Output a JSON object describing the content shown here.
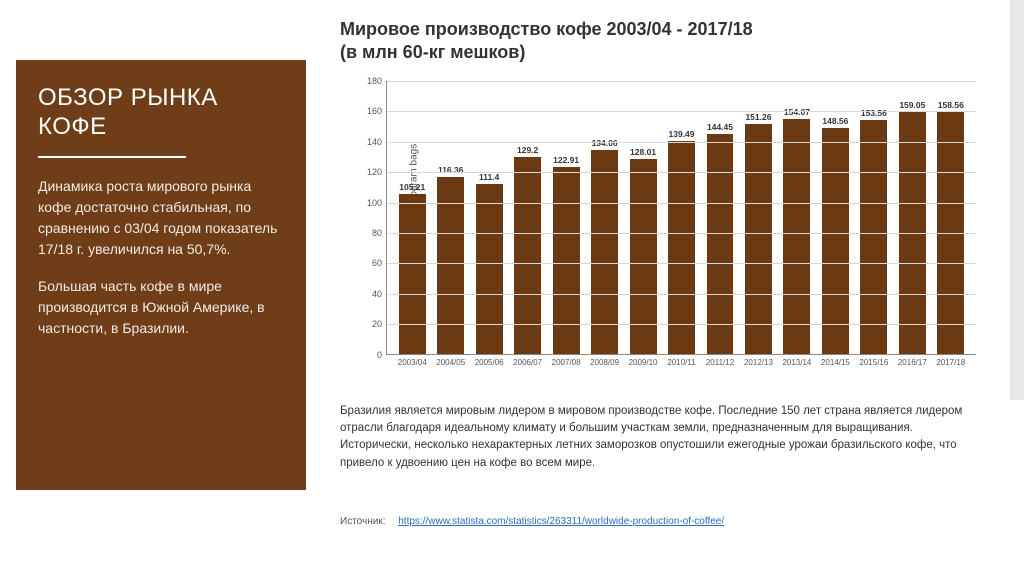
{
  "sidebar": {
    "title": "ОБЗОР РЫНКА КОФЕ",
    "para1": "Динамика роста мирового рынка кофе достаточно стабильная, по сравнению с 03/04 годом показатель 17/18 г. увеличился на 50,7%.",
    "para2": "Большая часть кофе в мире производится в Южной Америке, в частности, в Бразилии.",
    "bg_color": "#6f3e18",
    "text_color": "#ffffff"
  },
  "chart": {
    "title_line1": "Мировое производство кофе 2003/04 - 2017/18",
    "title_line2": "(в млн 60-кг мешков)",
    "ylabel": "Production in million 60 kilogram bags",
    "type": "bar",
    "bar_color": "#6b3a12",
    "grid_color": "#d8d8d8",
    "axis_color": "#888888",
    "background_color": "#ffffff",
    "ylim": [
      0,
      180
    ],
    "ytick_step": 20,
    "yticks": [
      0,
      20,
      40,
      60,
      80,
      100,
      120,
      140,
      160,
      180
    ],
    "bar_width": 0.7,
    "label_fontsize": 8.5,
    "tick_fontsize": 8,
    "categories": [
      "2003/04",
      "2004/05",
      "2005/06",
      "2006/07",
      "2007/08",
      "2008/09",
      "2009/10",
      "2010/11",
      "2011/12",
      "2012/13",
      "2013/14",
      "2014/15",
      "2015/16",
      "2016/17",
      "2017/18"
    ],
    "values": [
      105.21,
      116.36,
      111.4,
      129.2,
      122.91,
      134.06,
      128.01,
      139.49,
      144.45,
      151.26,
      154.07,
      148.56,
      153.56,
      159.05,
      158.56
    ]
  },
  "caption": "Бразилия является мировым лидером в мировом производстве кофе. Последние 150 лет страна является лидером отрасли благодаря идеальному климату и большим участкам земли, предназначенным для выращивания. Исторически, несколько нехарактерных летних заморозков опустошили ежегодные урожаи бразильского кофе, что привело к удвоению цен на кофе во всем мире.",
  "source": {
    "label": "Источник:",
    "link_text": "https://www.statista.com/statistics/263311/worldwide-production-of-coffee/"
  }
}
